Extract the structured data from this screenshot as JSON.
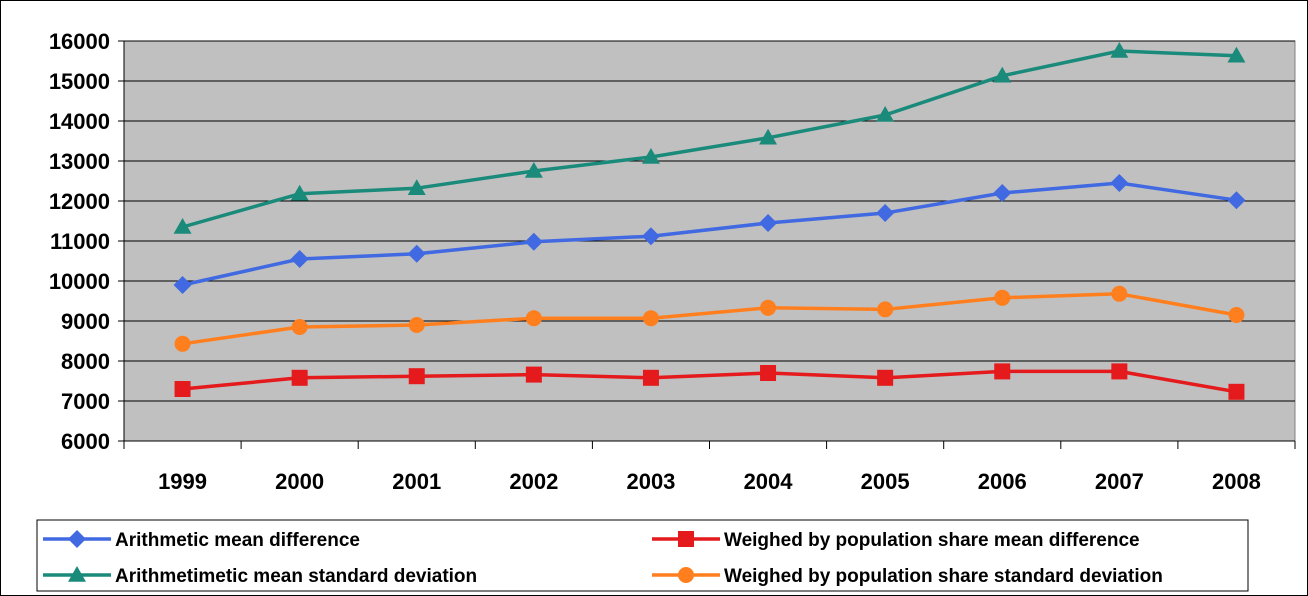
{
  "chart_data": {
    "type": "line",
    "title": "",
    "xlabel": "",
    "ylabel": "",
    "categories": [
      "1999",
      "2000",
      "2001",
      "2002",
      "2003",
      "2004",
      "2005",
      "2006",
      "2007",
      "2008"
    ],
    "ylim": [
      6000,
      16000
    ],
    "yticks": [
      "6000",
      "7000",
      "8000",
      "9000",
      "10000",
      "11000",
      "12000",
      "13000",
      "14000",
      "15000",
      "16000"
    ],
    "grid": "horizontal",
    "plot_background": "#c0c0c0",
    "legend_position": "bottom",
    "series": [
      {
        "name": "Arithmetic mean difference",
        "color": "#4169e1",
        "marker": "diamond",
        "values": [
          9900,
          10550,
          10680,
          10980,
          11120,
          11450,
          11700,
          12200,
          12450,
          12020
        ]
      },
      {
        "name": "Weighed by population share mean difference",
        "color": "#e41a1c",
        "marker": "square",
        "values": [
          7300,
          7580,
          7620,
          7660,
          7580,
          7700,
          7580,
          7740,
          7740,
          7230
        ]
      },
      {
        "name": "Arithmetimetic mean standard deviation",
        "color": "#1a8a7a",
        "marker": "triangle",
        "values": [
          11350,
          12180,
          12320,
          12750,
          13100,
          13580,
          14150,
          15130,
          15750,
          15630
        ]
      },
      {
        "name": "Weighed by population share standard deviation",
        "color": "#ff7f1e",
        "marker": "circle",
        "values": [
          8430,
          8850,
          8900,
          9070,
          9070,
          9330,
          9290,
          9580,
          9680,
          9150
        ]
      }
    ]
  }
}
